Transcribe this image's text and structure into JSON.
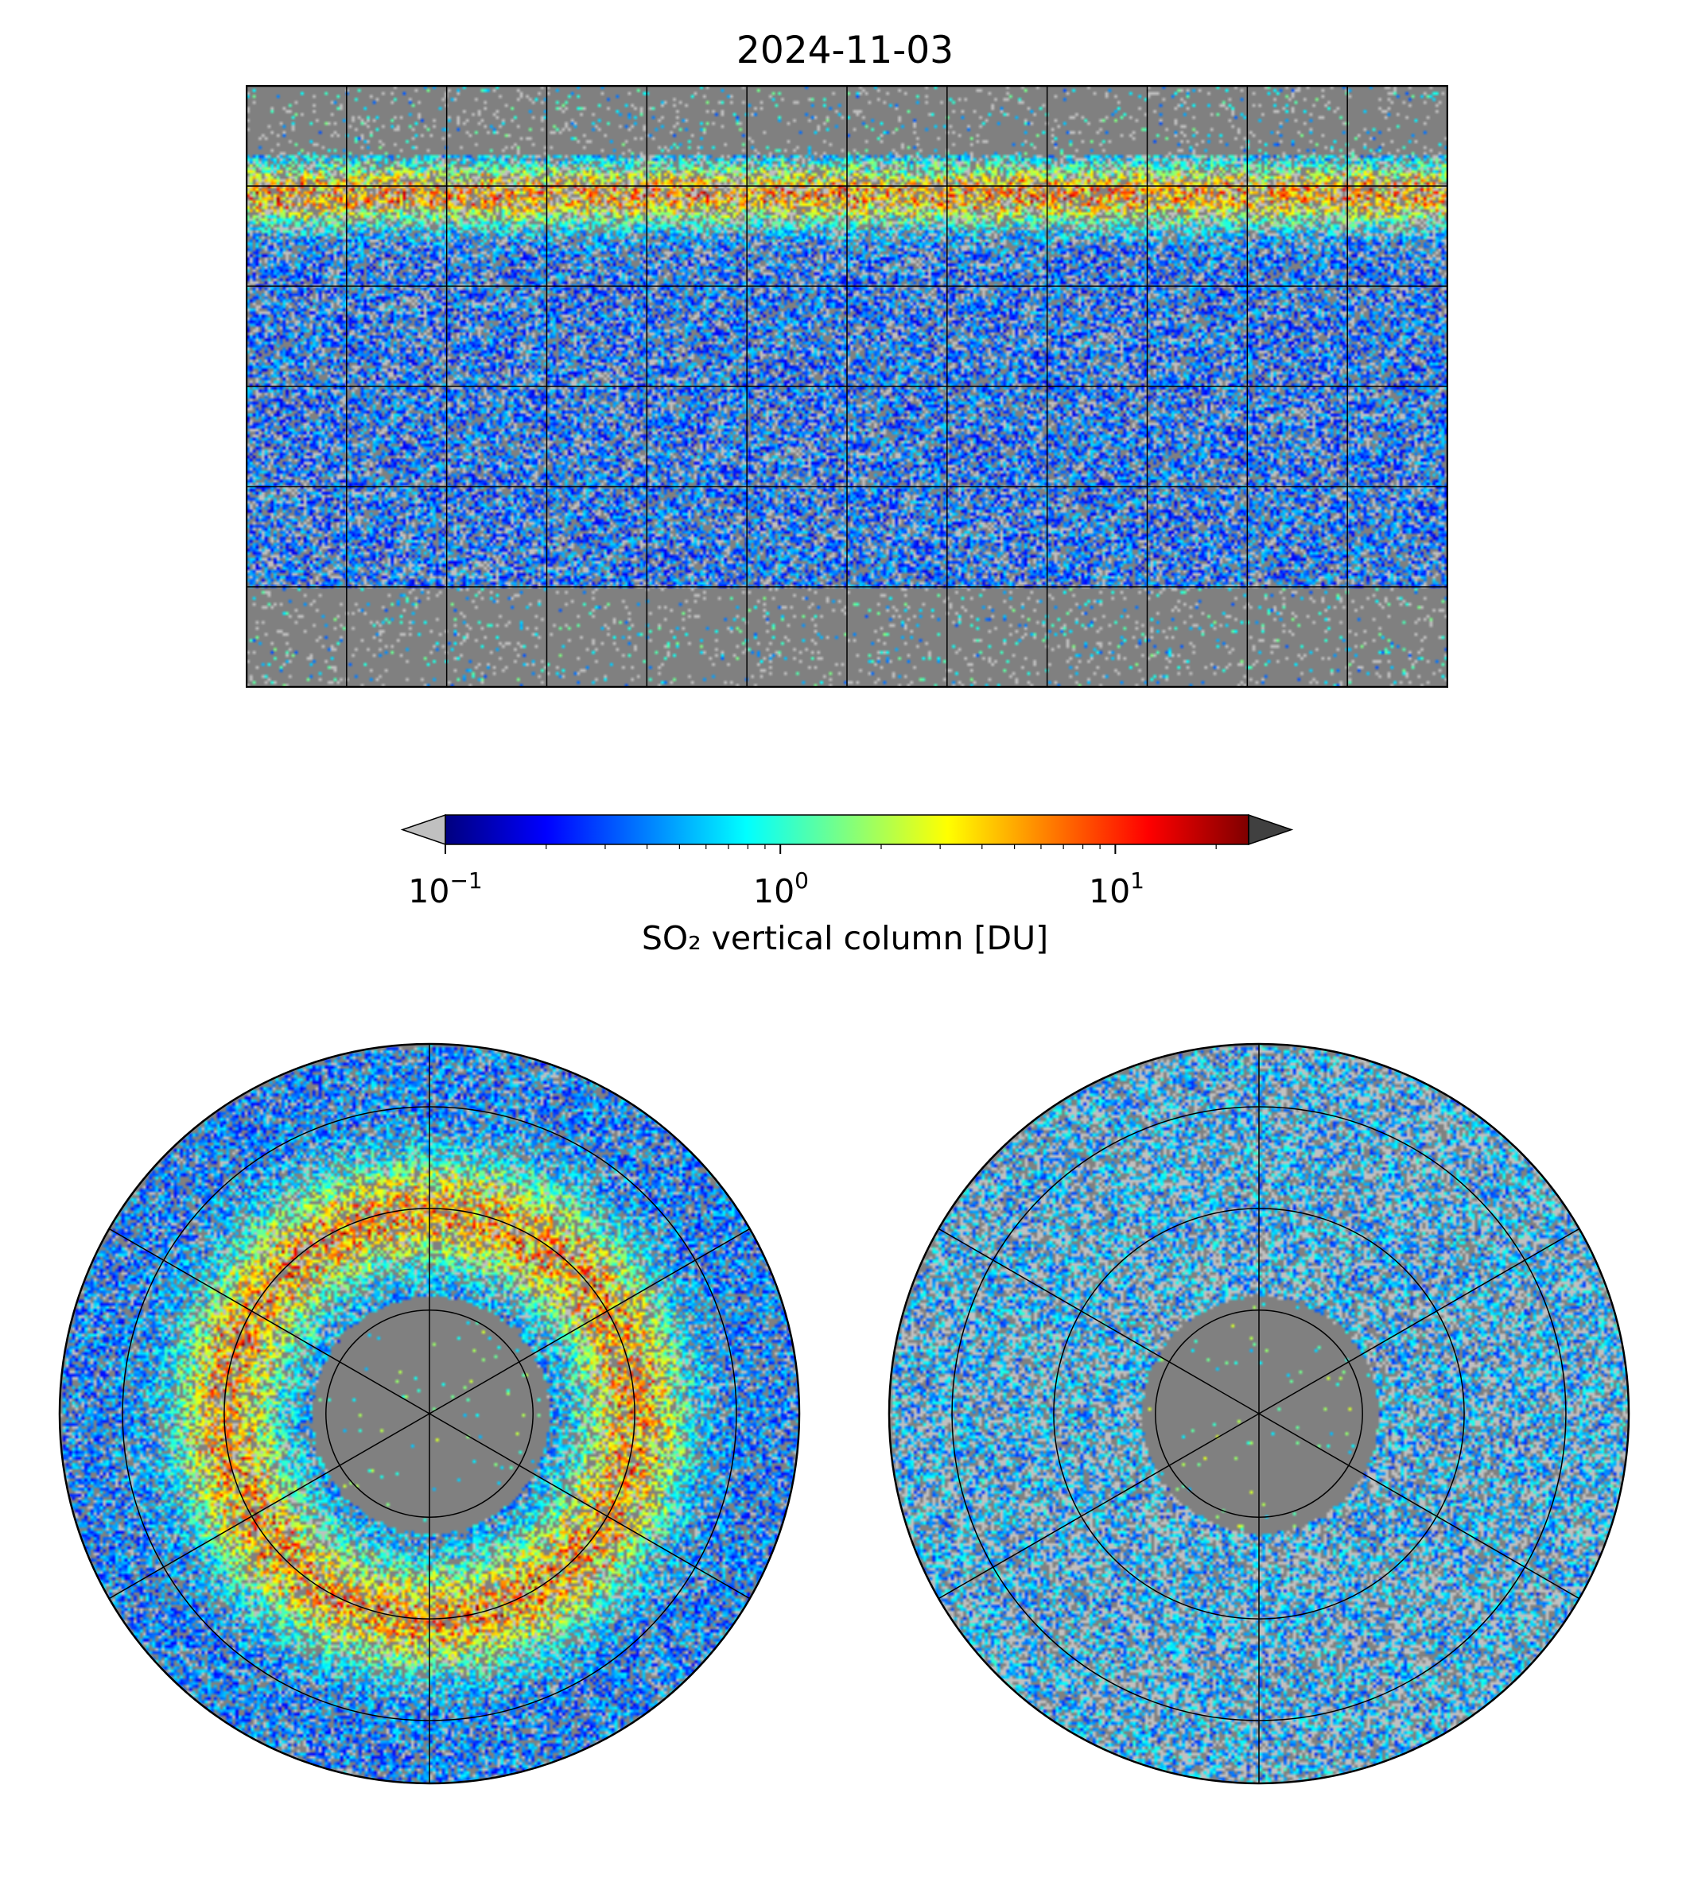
{
  "figure": {
    "title": "2024-11-03"
  },
  "colorbar": {
    "label": "SO₂ vertical column [DU]",
    "scale": "log",
    "range": [
      0.1,
      25
    ],
    "colormap": "jet",
    "ticks": [
      {
        "base": "10",
        "exponent": "−1",
        "value": 0.1
      },
      {
        "base": "10",
        "exponent": "0",
        "value": 1
      },
      {
        "base": "10",
        "exponent": "1",
        "value": 10
      }
    ],
    "extend_min_color": "#c0c0c0",
    "extend_max_color": "#404040",
    "jet_stops": [
      "#00007f",
      "#0000ff",
      "#007fff",
      "#00ffff",
      "#7fff7f",
      "#ffff00",
      "#ff7f00",
      "#ff0000",
      "#7f0000"
    ]
  },
  "panels": [
    {
      "id": "global",
      "projection": "plate-carree",
      "gridlines_lon_step": 30,
      "gridlines_lat_step": 30
    },
    {
      "id": "north-pole",
      "projection": "north-polar-stereo",
      "gridlines": true
    },
    {
      "id": "south-pole",
      "projection": "south-polar-stereo",
      "gridlines": true
    }
  ],
  "colors": {
    "no_data": "#808080",
    "below_range": "#c0c0c0",
    "coastline": "#000000"
  }
}
